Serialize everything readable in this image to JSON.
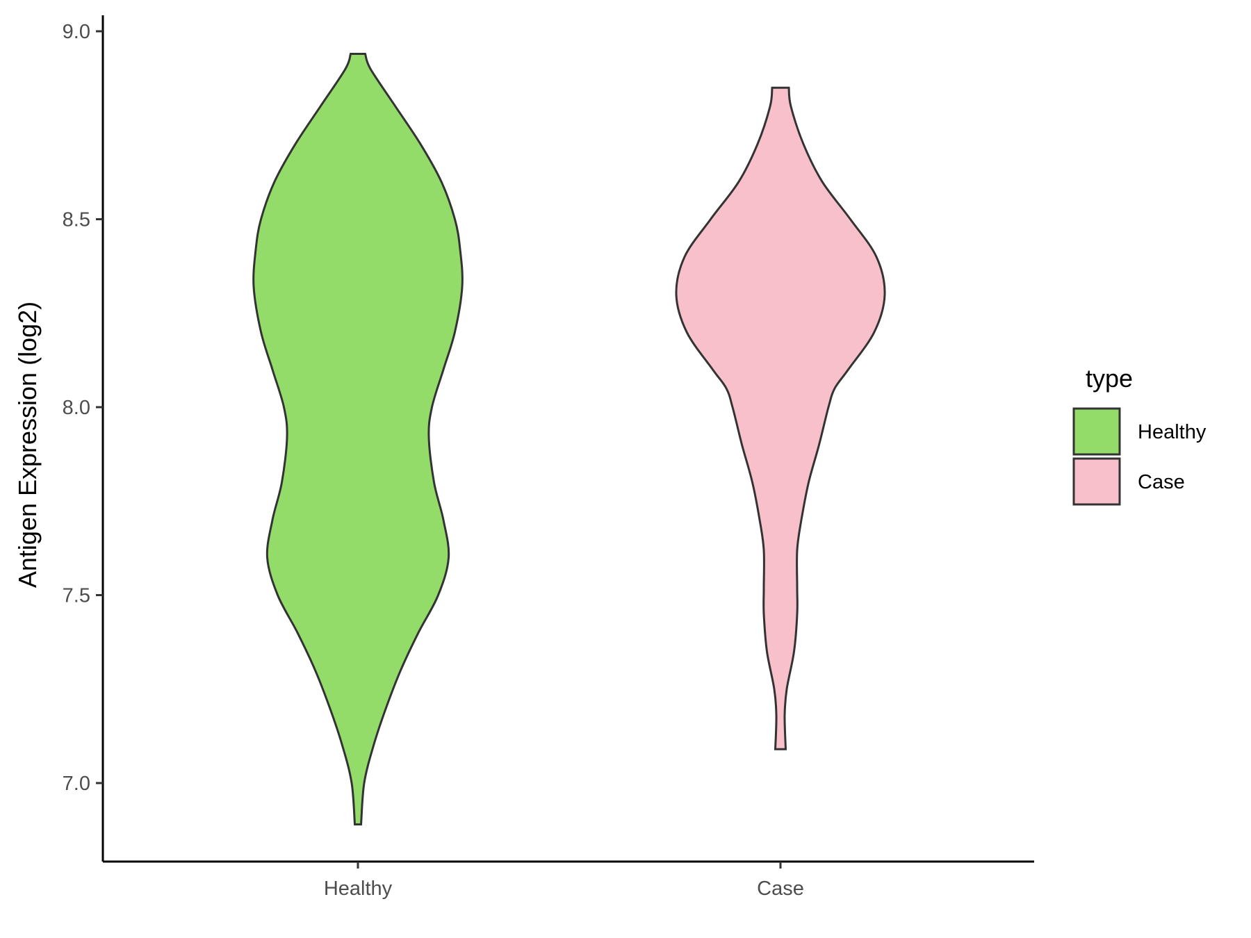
{
  "chart_data": {
    "type": "violin",
    "xlabel": "",
    "ylabel": "Antigen Expression (log2)",
    "ylim": [
      6.79,
      9.09
    ],
    "yticks": [
      "7.0",
      "7.5",
      "8.0",
      "8.5",
      "9.0"
    ],
    "categories": [
      "Healthy",
      "Case"
    ],
    "grid": false,
    "legend": {
      "title": "type",
      "position": "right",
      "entries": [
        {
          "label": "Healthy",
          "color": "#93DC6A"
        },
        {
          "label": "Case",
          "color": "#F8C0CB"
        }
      ]
    },
    "series": [
      {
        "category": "Healthy",
        "color": "#93DC6A",
        "min": 6.89,
        "max": 8.94,
        "density": [
          [
            6.89,
            0.03
          ],
          [
            7.0,
            0.06
          ],
          [
            7.1,
            0.15
          ],
          [
            7.2,
            0.27
          ],
          [
            7.3,
            0.41
          ],
          [
            7.4,
            0.58
          ],
          [
            7.5,
            0.77
          ],
          [
            7.6,
            0.87
          ],
          [
            7.7,
            0.82
          ],
          [
            7.8,
            0.73
          ],
          [
            7.92,
            0.68
          ],
          [
            8.0,
            0.71
          ],
          [
            8.1,
            0.82
          ],
          [
            8.2,
            0.93
          ],
          [
            8.32,
            1.0
          ],
          [
            8.42,
            0.98
          ],
          [
            8.5,
            0.93
          ],
          [
            8.6,
            0.8
          ],
          [
            8.7,
            0.6
          ],
          [
            8.8,
            0.36
          ],
          [
            8.9,
            0.12
          ],
          [
            8.94,
            0.07
          ]
        ]
      },
      {
        "category": "Case",
        "color": "#F8C0CB",
        "min": 7.09,
        "max": 8.85,
        "density": [
          [
            7.09,
            0.05
          ],
          [
            7.18,
            0.04
          ],
          [
            7.25,
            0.06
          ],
          [
            7.35,
            0.13
          ],
          [
            7.45,
            0.16
          ],
          [
            7.52,
            0.16
          ],
          [
            7.62,
            0.16
          ],
          [
            7.7,
            0.2
          ],
          [
            7.8,
            0.27
          ],
          [
            7.9,
            0.37
          ],
          [
            8.0,
            0.46
          ],
          [
            8.05,
            0.52
          ],
          [
            8.1,
            0.65
          ],
          [
            8.2,
            0.9
          ],
          [
            8.3,
            1.0
          ],
          [
            8.4,
            0.92
          ],
          [
            8.5,
            0.67
          ],
          [
            8.6,
            0.4
          ],
          [
            8.7,
            0.22
          ],
          [
            8.8,
            0.1
          ],
          [
            8.85,
            0.08
          ]
        ]
      }
    ]
  }
}
